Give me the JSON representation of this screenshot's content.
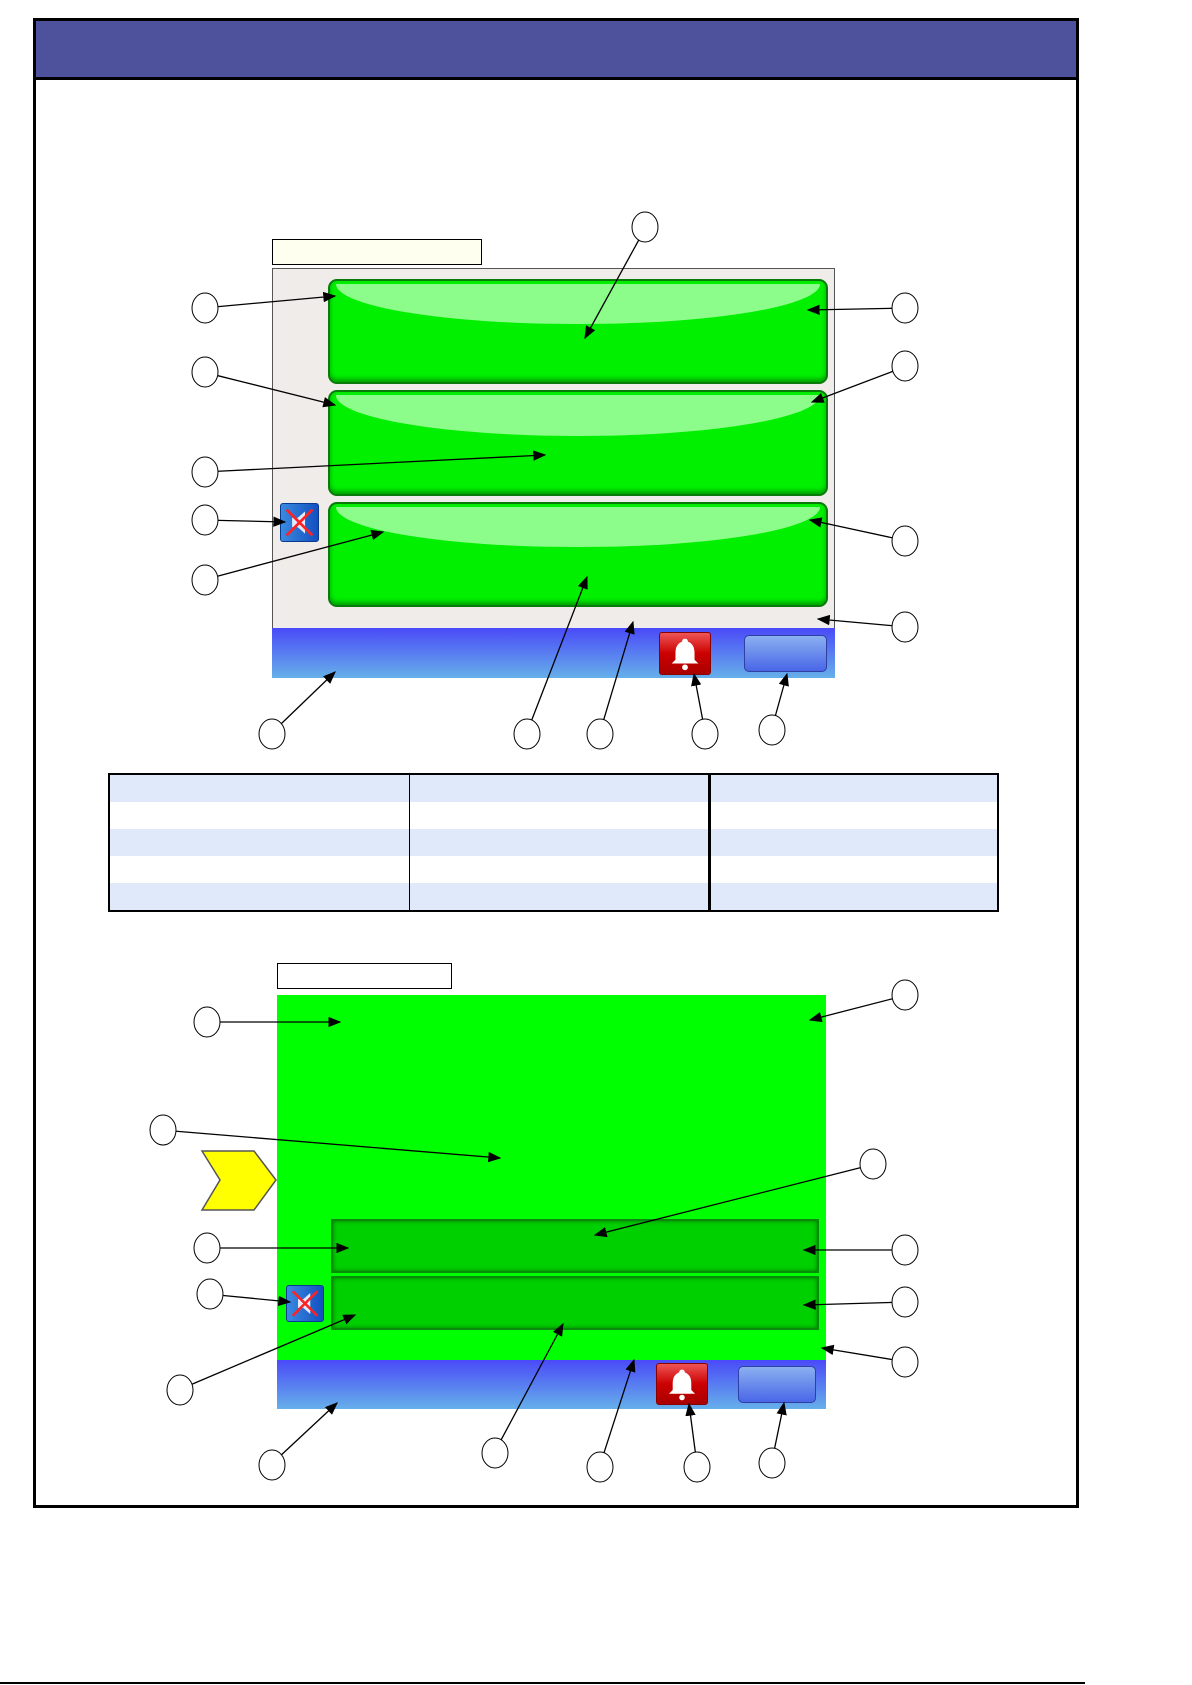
{
  "colors": {
    "header": "#4e529c",
    "label_box_top": "#fffff0",
    "label_box_bottom": "#ffffff",
    "panel_gray": "#efecea",
    "button_green": "#00f000",
    "screen_green": "#00ff00",
    "bar_dark_green": "#00d000",
    "status_bar_blue": "#4a4af8",
    "table_stripe": "#dfe9fa",
    "chevron_yellow": "#ffff00",
    "alarm_red": "#cc0000"
  },
  "icons": {
    "alarm": "bell-icon",
    "mute": "speaker-muted-icon",
    "pointer": "chevron-right-icon"
  },
  "table": {
    "rows": 5,
    "columns": 3
  },
  "callouts": {
    "top_screen": 15,
    "bottom_screen": 15
  }
}
